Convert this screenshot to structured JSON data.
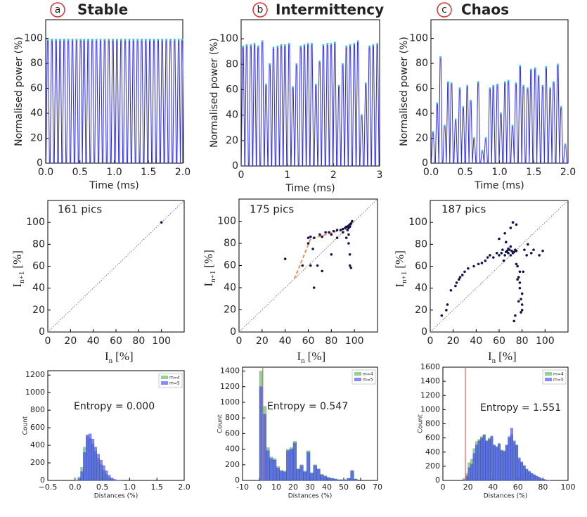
{
  "chart_data": [
    {
      "type": "pulse",
      "panel_label": "a",
      "title": "Stable",
      "xlabel": "Time (ms)",
      "ylabel": "Normalised power (%)",
      "color": "#2a2af0",
      "marker_color": "#40c8c8",
      "x": [
        0.03,
        0.09,
        0.15,
        0.21,
        0.27,
        0.33,
        0.39,
        0.45,
        0.51,
        0.56,
        0.62,
        0.68,
        0.74,
        0.8,
        0.86,
        0.92,
        0.98,
        1.04,
        1.1,
        1.16,
        1.22,
        1.28,
        1.34,
        1.4,
        1.46,
        1.52,
        1.58,
        1.64,
        1.7,
        1.76,
        1.82,
        1.88,
        1.94,
        1.99
      ],
      "values": [
        99,
        99,
        99,
        99,
        99,
        99,
        99,
        99,
        99,
        99,
        99,
        99,
        99,
        99,
        99,
        99,
        99,
        99,
        99,
        99,
        99,
        99,
        99,
        99,
        99,
        99,
        99,
        99,
        99,
        99,
        99,
        99,
        99,
        99
      ],
      "xlim": [
        0,
        2
      ],
      "ylim": [
        0,
        115
      ],
      "xticks": [
        {
          "value": 0,
          "label": "0.0"
        },
        0.5,
        {
          "value": 1,
          "label": "1.0"
        },
        1.5,
        {
          "value": 2,
          "label": "2.0"
        }
      ],
      "yticks": [
        0,
        20,
        40,
        60,
        80,
        100
      ]
    },
    {
      "type": "pulse",
      "panel_label": "b",
      "title": "Intermittency",
      "xlabel": "Time (ms)",
      "ylabel": "Normalised power (%)",
      "color": "#2a2af0",
      "marker_color": "#40c8c8",
      "x": [
        0.04,
        0.12,
        0.21,
        0.29,
        0.37,
        0.46,
        0.54,
        0.62,
        0.7,
        0.79,
        0.87,
        0.95,
        1.04,
        1.12,
        1.2,
        1.29,
        1.37,
        1.45,
        1.53,
        1.62,
        1.7,
        1.78,
        1.87,
        1.95,
        2.03,
        2.12,
        2.2,
        2.28,
        2.36,
        2.45,
        2.53,
        2.61,
        2.7,
        2.78,
        2.86,
        2.95
      ],
      "values": [
        94,
        95,
        95,
        96,
        94,
        98,
        64,
        80,
        93,
        94,
        95,
        95,
        96,
        62,
        80,
        94,
        95,
        96,
        96,
        64,
        82,
        95,
        96,
        96,
        97,
        63,
        80,
        94,
        95,
        96,
        98,
        40,
        65,
        94,
        95,
        96
      ],
      "xlim": [
        0,
        3
      ],
      "ylim": [
        0,
        115
      ],
      "xticks": [
        0,
        1,
        2,
        3
      ],
      "yticks": [
        0,
        20,
        40,
        60,
        80,
        100
      ]
    },
    {
      "type": "pulse",
      "panel_label": "c",
      "title": "Chaos",
      "xlabel": "Time (ms)",
      "ylabel": "Normalised power (%)",
      "color": "#2a2af0",
      "marker_color": "#40c8c8",
      "x": [
        0.03,
        0.09,
        0.14,
        0.2,
        0.25,
        0.3,
        0.36,
        0.42,
        0.47,
        0.53,
        0.58,
        0.63,
        0.69,
        0.75,
        0.8,
        0.86,
        0.91,
        0.97,
        1.02,
        1.08,
        1.13,
        1.19,
        1.24,
        1.3,
        1.35,
        1.41,
        1.46,
        1.52,
        1.57,
        1.63,
        1.68,
        1.74,
        1.79,
        1.85,
        1.9,
        1.96
      ],
      "values": [
        25,
        48,
        85,
        30,
        65,
        64,
        35,
        60,
        45,
        62,
        50,
        20,
        65,
        10,
        20,
        60,
        62,
        63,
        40,
        65,
        66,
        30,
        64,
        78,
        62,
        60,
        75,
        76,
        70,
        62,
        77,
        60,
        65,
        79,
        45,
        15
      ],
      "xlim": [
        0,
        2
      ],
      "ylim": [
        0,
        115
      ],
      "xticks": [
        {
          "value": 0,
          "label": "0.0"
        },
        0.5,
        {
          "value": 1,
          "label": "1.0"
        },
        1.5,
        {
          "value": 2,
          "label": "2.0"
        }
      ],
      "yticks": [
        0,
        20,
        40,
        60,
        80,
        100
      ]
    },
    {
      "type": "scatter",
      "annotation": "161 pics",
      "xlabel_main": "I",
      "xlabel_sub": "n",
      "xlabel_unit": "[%]",
      "ylabel_main": "I",
      "ylabel_sub": "n+1",
      "ylabel_unit": "[%]",
      "color": "#141450",
      "x": [
        100
      ],
      "values": [
        100
      ],
      "xlim": [
        0,
        120
      ],
      "ylim": [
        0,
        120
      ],
      "xticks": [
        0,
        20,
        40,
        60,
        80,
        100
      ],
      "yticks": [
        0,
        20,
        40,
        60,
        80,
        100
      ]
    },
    {
      "type": "scatter",
      "annotation": "175 pics",
      "xlabel_main": "I",
      "xlabel_sub": "n",
      "xlabel_unit": "[%]",
      "ylabel_main": "I",
      "ylabel_sub": "n+1",
      "ylabel_unit": "[%]",
      "color": "#141450",
      "x": [
        40,
        55,
        60,
        60,
        62,
        65,
        65,
        68,
        70,
        72,
        75,
        78,
        80,
        82,
        85,
        88,
        90,
        92,
        93,
        94,
        95,
        95,
        96,
        97,
        96,
        94,
        95,
        96,
        96,
        97,
        95,
        93,
        98,
        90,
        85,
        80,
        72,
        62,
        64
      ],
      "values": [
        66,
        60,
        80,
        85,
        86,
        40,
        85,
        60,
        88,
        55,
        90,
        90,
        70,
        91,
        92,
        92,
        93,
        94,
        95,
        95,
        96,
        94,
        97,
        98,
        95,
        92,
        80,
        70,
        60,
        58,
        88,
        85,
        100,
        90,
        85,
        88,
        86,
        60,
        75
      ],
      "trajectory": {
        "color": "#f08a4b",
        "x": [
          48,
          55,
          62,
          72,
          82,
          92,
          97,
          99,
          96,
          98
        ],
        "values": [
          48,
          66,
          84,
          87,
          90,
          93,
          96,
          100,
          95,
          99
        ]
      },
      "xlim": [
        0,
        120
      ],
      "ylim": [
        0,
        120
      ],
      "xticks": [
        0,
        20,
        40,
        60,
        80,
        100
      ],
      "yticks": [
        0,
        20,
        40,
        60,
        80,
        100
      ]
    },
    {
      "type": "scatter",
      "annotation": "187 pics",
      "xlabel_main": "I",
      "xlabel_sub": "n",
      "xlabel_unit": "[%]",
      "ylabel_main": "I",
      "ylabel_sub": "n+1",
      "ylabel_unit": "[%]",
      "color": "#141450",
      "x": [
        10,
        14,
        15,
        18,
        22,
        23,
        25,
        26,
        28,
        30,
        33,
        38,
        42,
        45,
        48,
        50,
        52,
        55,
        58,
        60,
        62,
        63,
        65,
        66,
        67,
        68,
        68,
        69,
        70,
        70,
        71,
        72,
        72,
        73,
        74,
        75,
        75,
        76,
        77,
        78,
        78,
        79,
        80,
        80,
        82,
        84,
        85,
        88,
        90,
        95,
        98,
        60,
        65,
        70,
        72,
        75,
        78,
        80,
        76,
        74,
        73,
        77,
        79,
        81,
        66,
        64
      ],
      "values": [
        15,
        20,
        25,
        38,
        42,
        45,
        48,
        50,
        52,
        55,
        58,
        60,
        62,
        63,
        65,
        68,
        70,
        68,
        72,
        70,
        72,
        75,
        70,
        73,
        74,
        72,
        76,
        75,
        70,
        78,
        74,
        72,
        100,
        73,
        75,
        74,
        98,
        60,
        50,
        45,
        40,
        30,
        25,
        20,
        75,
        70,
        80,
        72,
        75,
        70,
        74,
        85,
        90,
        95,
        100,
        62,
        55,
        35,
        48,
        15,
        10,
        28,
        18,
        55,
        82,
        65
      ],
      "xlim": [
        0,
        120
      ],
      "ylim": [
        0,
        120
      ],
      "xticks": [
        0,
        20,
        40,
        60,
        80,
        100
      ],
      "yticks": [
        0,
        20,
        40,
        60,
        80,
        100
      ]
    },
    {
      "type": "histogram",
      "annotation": "Entropy = 0.000",
      "xlabel": "Distances (%)",
      "ylabel": "Count",
      "bins": [
        0,
        0.05,
        0.1,
        0.15,
        0.2,
        0.25,
        0.3,
        0.35,
        0.4,
        0.45,
        0.5,
        0.55,
        0.6,
        0.65,
        0.7,
        0.75,
        0.8,
        0.85
      ],
      "series": [
        {
          "name": "m=4",
          "color": "#4caf50",
          "values": [
            5,
            40,
            150,
            380,
            500,
            480,
            420,
            330,
            250,
            180,
            120,
            70,
            35,
            15,
            5,
            2,
            0
          ]
        },
        {
          "name": "m=5",
          "color": "#3a3af5",
          "values": [
            0,
            20,
            100,
            320,
            520,
            530,
            470,
            380,
            300,
            230,
            170,
            110,
            60,
            30,
            12,
            4,
            1
          ]
        }
      ],
      "xlim": [
        -0.5,
        2
      ],
      "ylim": [
        0,
        1250
      ],
      "xticks": [
        {
          "value": -0.5,
          "label": "−0.5"
        },
        {
          "value": 0,
          "label": "0.0"
        },
        0.5,
        {
          "value": 1,
          "label": "1.0"
        },
        1.5,
        {
          "value": 2,
          "label": "2.0"
        }
      ],
      "yticks": [
        0,
        200,
        400,
        600,
        800,
        1000,
        1200
      ]
    },
    {
      "type": "histogram",
      "annotation": "Entropy = 0.547",
      "xlabel": "Distances (%)",
      "ylabel": "Count",
      "bins": [
        0,
        2,
        4,
        6,
        8,
        10,
        12,
        14,
        16,
        18,
        20,
        22,
        24,
        26,
        28,
        30,
        32,
        34,
        36,
        38,
        40,
        42,
        44,
        46,
        48,
        50,
        52,
        54,
        56,
        58,
        60
      ],
      "series": [
        {
          "name": "m=4",
          "color": "#4caf50",
          "values": [
            1400,
            950,
            420,
            300,
            280,
            180,
            130,
            120,
            400,
            420,
            500,
            150,
            200,
            120,
            380,
            100,
            200,
            150,
            80,
            60,
            40,
            30,
            20,
            10,
            10,
            10,
            30,
            130,
            20,
            0
          ]
        },
        {
          "name": "m=5",
          "color": "#3a3af5",
          "values": [
            1200,
            850,
            380,
            280,
            260,
            160,
            120,
            110,
            380,
            400,
            480,
            140,
            190,
            110,
            360,
            90,
            190,
            140,
            70,
            50,
            35,
            25,
            15,
            8,
            8,
            8,
            25,
            120,
            15,
            0
          ]
        }
      ],
      "threshold": 2,
      "threshold_color": "#e86060",
      "xlim": [
        -10,
        70
      ],
      "ylim": [
        0,
        1450
      ],
      "xticks": [
        -10,
        0,
        10,
        20,
        30,
        40,
        50,
        60,
        70
      ],
      "yticks": [
        0,
        200,
        400,
        600,
        800,
        1000,
        1200,
        1400
      ]
    },
    {
      "type": "histogram",
      "annotation": "Entropy = 1.551",
      "xlabel": "Distances (%)",
      "ylabel": "Count",
      "bins": [
        16,
        18,
        20,
        22,
        24,
        26,
        28,
        30,
        32,
        34,
        36,
        38,
        40,
        42,
        44,
        46,
        48,
        50,
        52,
        54,
        56,
        58,
        60,
        62,
        64,
        66,
        68,
        70,
        72,
        74,
        76,
        78,
        80,
        82,
        84,
        86
      ],
      "series": [
        {
          "name": "m=4",
          "color": "#4caf50",
          "values": [
            30,
            100,
            250,
            300,
            450,
            550,
            580,
            620,
            650,
            560,
            600,
            630,
            500,
            480,
            520,
            430,
            420,
            500,
            600,
            650,
            540,
            500,
            300,
            250,
            200,
            150,
            120,
            100,
            80,
            60,
            40,
            20,
            10,
            5,
            2
          ]
        },
        {
          "name": "m=5",
          "color": "#3a3af5",
          "values": [
            10,
            60,
            180,
            230,
            380,
            500,
            560,
            600,
            640,
            560,
            580,
            620,
            500,
            470,
            520,
            420,
            410,
            500,
            620,
            740,
            560,
            500,
            320,
            260,
            210,
            160,
            130,
            100,
            80,
            60,
            45,
            25,
            15,
            8,
            3
          ]
        }
      ],
      "threshold": 18,
      "threshold_color": "#e86060",
      "xlim": [
        0,
        100
      ],
      "ylim": [
        0,
        1600
      ],
      "xticks": [
        0,
        20,
        40,
        60,
        80,
        100
      ],
      "yticks": [
        0,
        200,
        400,
        600,
        800,
        1000,
        1200,
        1400,
        1600
      ]
    }
  ]
}
